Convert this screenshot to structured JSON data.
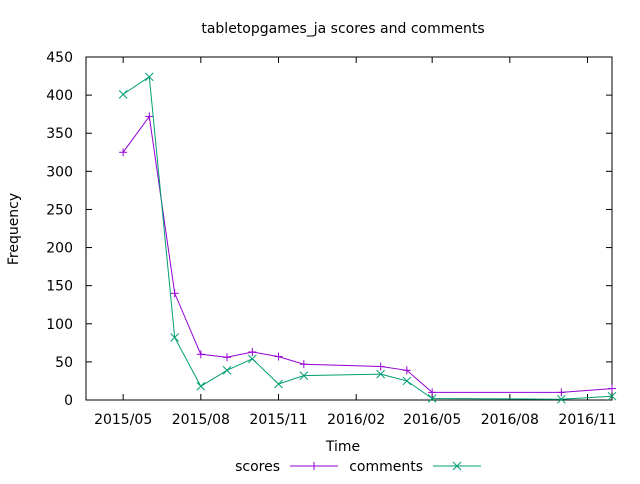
{
  "chart_data": {
    "type": "line",
    "title": "tabletopgames_ja scores and comments",
    "xlabel": "Time",
    "ylabel": "Frequency",
    "xlim": [
      "2015-03-18",
      "2016-11-30"
    ],
    "ylim": [
      0,
      450
    ],
    "yticks": [
      0,
      50,
      100,
      150,
      200,
      250,
      300,
      350,
      400,
      450
    ],
    "xticks": [
      {
        "date": "2015-05-01",
        "label": "2015/05"
      },
      {
        "date": "2015-08-01",
        "label": "2015/08"
      },
      {
        "date": "2015-11-01",
        "label": "2015/11"
      },
      {
        "date": "2016-02-01",
        "label": "2016/02"
      },
      {
        "date": "2016-05-01",
        "label": "2016/05"
      },
      {
        "date": "2016-08-01",
        "label": "2016/08"
      },
      {
        "date": "2016-11-01",
        "label": "2016/11"
      }
    ],
    "grid": false,
    "legend_position": "bottom",
    "series": [
      {
        "name": "scores",
        "color": "#9400d3",
        "marker": "plus",
        "points": [
          {
            "x": "2015-05-01",
            "y": 325
          },
          {
            "x": "2015-06-01",
            "y": 372
          },
          {
            "x": "2015-07-01",
            "y": 140
          },
          {
            "x": "2015-08-01",
            "y": 60
          },
          {
            "x": "2015-09-01",
            "y": 56
          },
          {
            "x": "2015-10-01",
            "y": 63
          },
          {
            "x": "2015-11-01",
            "y": 57
          },
          {
            "x": "2015-12-01",
            "y": 47
          },
          {
            "x": "2016-03-01",
            "y": 44
          },
          {
            "x": "2016-04-01",
            "y": 39
          },
          {
            "x": "2016-05-01",
            "y": 10
          },
          {
            "x": "2016-10-01",
            "y": 10
          },
          {
            "x": "2016-11-30",
            "y": 15
          }
        ]
      },
      {
        "name": "comments",
        "color": "#009e73",
        "marker": "cross",
        "points": [
          {
            "x": "2015-05-01",
            "y": 401
          },
          {
            "x": "2015-06-01",
            "y": 424
          },
          {
            "x": "2015-07-01",
            "y": 82
          },
          {
            "x": "2015-08-01",
            "y": 18
          },
          {
            "x": "2015-09-01",
            "y": 39
          },
          {
            "x": "2015-10-01",
            "y": 54
          },
          {
            "x": "2015-11-01",
            "y": 21
          },
          {
            "x": "2015-12-01",
            "y": 32
          },
          {
            "x": "2016-03-01",
            "y": 34
          },
          {
            "x": "2016-04-01",
            "y": 25
          },
          {
            "x": "2016-05-01",
            "y": 2
          },
          {
            "x": "2016-10-01",
            "y": 1
          },
          {
            "x": "2016-11-30",
            "y": 5
          }
        ]
      }
    ]
  }
}
